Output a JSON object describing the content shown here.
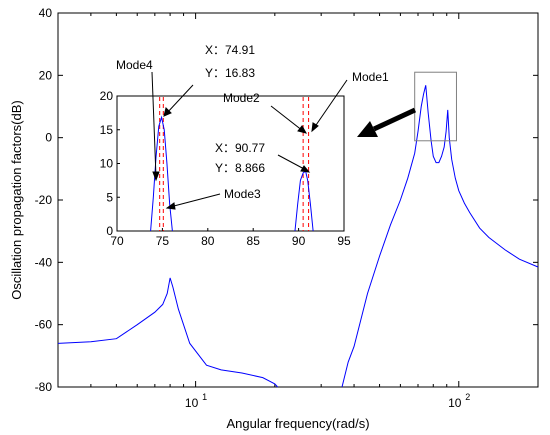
{
  "chart_data": [
    {
      "type": "line",
      "xlabel": "Angular frequency(rad/s)",
      "ylabel": "Oscillation propagation factors(dB)",
      "x_scale": "log",
      "xlim": [
        3,
        200
      ],
      "ylim": [
        -80,
        40
      ],
      "x_ticks": [
        10,
        100
      ],
      "x_tick_labels": [
        {
          "base": "10",
          "exp": "1"
        },
        {
          "base": "10",
          "exp": "2"
        }
      ],
      "y_ticks": [
        -80,
        -60,
        -40,
        -20,
        0,
        20,
        40
      ],
      "grid": false,
      "line_color": "#0000ff",
      "series": [
        {
          "x": [
            3,
            4,
            5,
            6,
            7,
            7.5,
            7.8,
            8.0,
            8.2,
            8.6,
            9.5,
            11,
            12.5,
            15,
            18,
            20,
            20.5,
            36,
            38,
            40,
            45,
            50,
            55,
            60,
            64,
            68,
            70,
            72,
            73.5,
            74.9,
            76.5,
            78.5,
            80,
            82,
            84,
            86,
            88,
            89.5,
            90.8,
            92,
            94,
            97,
            100,
            105,
            110,
            120,
            130,
            150,
            170,
            200
          ],
          "y": [
            -66,
            -65.5,
            -64.5,
            -60,
            -56,
            -53.5,
            -50,
            -45,
            -48,
            -55,
            -66,
            -73,
            -74.5,
            -75.5,
            -77,
            -79,
            -80,
            -80,
            -72,
            -67,
            -50,
            -38,
            -28,
            -20,
            -13,
            -5,
            2,
            10,
            14,
            16.8,
            8,
            -1,
            -6,
            -8,
            -8,
            -6,
            -3,
            2,
            8.9,
            0,
            -7,
            -13,
            -17,
            -21,
            -24,
            -29,
            -32,
            -36,
            -39,
            -41.5
          ]
        }
      ],
      "selection_box": {
        "x": [
          68,
          98
        ],
        "y": [
          -1,
          21
        ]
      }
    },
    {
      "type": "line",
      "inset": true,
      "xlim": [
        70,
        95
      ],
      "ylim": [
        0,
        20
      ],
      "x_ticks": [
        70,
        75,
        80,
        85,
        90,
        95
      ],
      "y_ticks": [
        0,
        5,
        10,
        15,
        20
      ],
      "line_color": "#0000ff",
      "marker_color": "#ff0000",
      "series": [
        {
          "x": [
            73.7,
            74.0,
            74.3,
            74.6,
            74.91,
            75.2,
            75.5,
            75.8,
            76.1
          ],
          "y": [
            0,
            5,
            11,
            15.5,
            16.83,
            15,
            10,
            4,
            0
          ]
        },
        {
          "x": [
            89.6,
            89.9,
            90.2,
            90.5,
            90.77,
            91.0,
            91.3,
            91.6
          ],
          "y": [
            0,
            4,
            7.5,
            8.6,
            8.866,
            7.5,
            4,
            0
          ]
        }
      ],
      "mode_lines": [
        74.7,
        75.1,
        90.5,
        91.1
      ]
    }
  ],
  "annotations": {
    "mode1": "Mode1",
    "mode2": "Mode2",
    "mode3": "Mode3",
    "mode4": "Mode4",
    "peak1": {
      "x": "X：74.91",
      "y": "Y：16.83"
    },
    "peak2": {
      "x": "X：90.77",
      "y": "Y：8.866"
    }
  }
}
